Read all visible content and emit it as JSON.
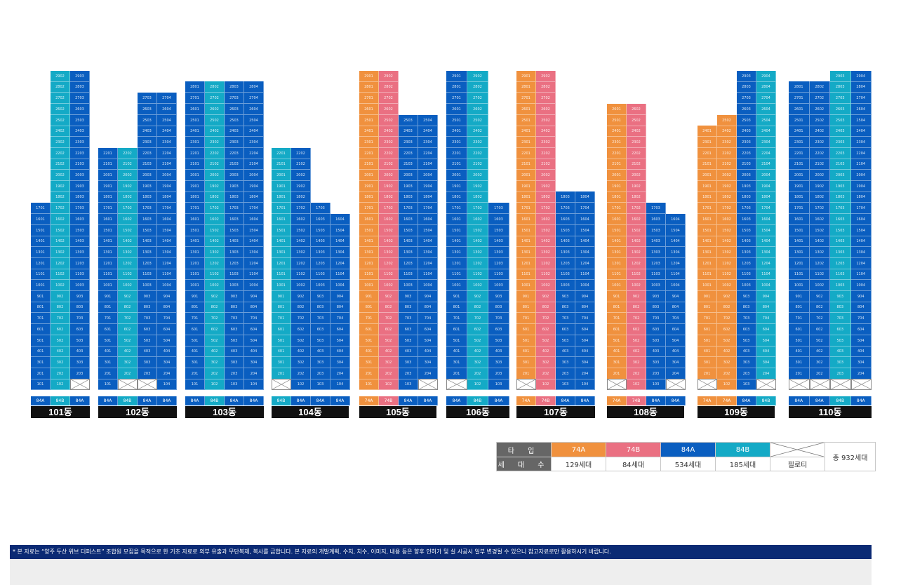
{
  "colors": {
    "74A": "#f0913e",
    "74B": "#ea7082",
    "84A": "#0a5ec0",
    "84B": "#14aac6",
    "pilotis": "#ffffff"
  },
  "buildings": [
    {
      "name": "101동",
      "columns": [
        {
          "type": "84A",
          "line": "01",
          "top": 17
        },
        {
          "type": "84B",
          "line": "02",
          "top": 29
        },
        {
          "type": "84A",
          "line": "03",
          "top": 29
        }
      ]
    },
    {
      "name": "102동",
      "columns": [
        {
          "type": "84A",
          "line": "01",
          "top": 22
        },
        {
          "type": "84B",
          "line": "02",
          "top": 22
        },
        {
          "type": "84A",
          "line": "03",
          "top": 27
        },
        {
          "type": "84A",
          "line": "04",
          "top": 27
        }
      ]
    },
    {
      "name": "103동",
      "columns": [
        {
          "type": "84A",
          "line": "01",
          "top": 28
        },
        {
          "type": "84B",
          "line": "02",
          "top": 28
        },
        {
          "type": "84A",
          "line": "03",
          "top": 28
        },
        {
          "type": "84A",
          "line": "04",
          "top": 28
        }
      ]
    },
    {
      "name": "104동",
      "columns": [
        {
          "type": "84B",
          "line": "01",
          "top": 22
        },
        {
          "type": "84A",
          "line": "02",
          "top": 22
        },
        {
          "type": "84A",
          "line": "03",
          "top": 17
        },
        {
          "type": "84A",
          "line": "04",
          "top": 16
        }
      ]
    },
    {
      "name": "105동",
      "columns": [
        {
          "type": "74A",
          "line": "01",
          "top": 29
        },
        {
          "type": "74B",
          "line": "02",
          "top": 29
        },
        {
          "type": "84A",
          "line": "03",
          "top": 25
        },
        {
          "type": "84A",
          "line": "04",
          "top": 25
        }
      ]
    },
    {
      "name": "106동",
      "columns": [
        {
          "type": "84A",
          "line": "01",
          "top": 29
        },
        {
          "type": "84B",
          "line": "02",
          "top": 29
        },
        {
          "type": "84A",
          "line": "03",
          "top": 17
        }
      ]
    },
    {
      "name": "107동",
      "columns": [
        {
          "type": "74A",
          "line": "01",
          "top": 29
        },
        {
          "type": "74B",
          "line": "02",
          "top": 29
        },
        {
          "type": "84A",
          "line": "03",
          "top": 18
        },
        {
          "type": "84A",
          "line": "04",
          "top": 18
        }
      ]
    },
    {
      "name": "108동",
      "columns": [
        {
          "type": "74A",
          "line": "01",
          "top": 26
        },
        {
          "type": "74B",
          "line": "02",
          "top": 26
        },
        {
          "type": "84A",
          "line": "03",
          "top": 17
        },
        {
          "type": "84A",
          "line": "04",
          "top": 16
        }
      ]
    },
    {
      "name": "109동",
      "columns": [
        {
          "type": "74A",
          "line": "01",
          "top": 24
        },
        {
          "type": "74A",
          "line": "02",
          "top": 25
        },
        {
          "type": "84A",
          "line": "03",
          "top": 29
        },
        {
          "type": "84B",
          "line": "04",
          "top": 29
        }
      ]
    },
    {
      "name": "110동",
      "columns": [
        {
          "type": "84A",
          "line": "01",
          "top": 28
        },
        {
          "type": "84A",
          "line": "02",
          "top": 28
        },
        {
          "type": "84B",
          "line": "03",
          "top": 29
        },
        {
          "type": "84A",
          "line": "04",
          "top": 29
        }
      ]
    }
  ],
  "legend": {
    "type_header": "타 입",
    "count_header": "세 대 수",
    "types": [
      {
        "type": "74A",
        "count": "129세대"
      },
      {
        "type": "74B",
        "count": "84세대"
      },
      {
        "type": "84A",
        "count": "534세대"
      },
      {
        "type": "84B",
        "count": "185세대"
      }
    ],
    "pilotis_label": "필로티",
    "total": "총 932세대"
  },
  "footer_note": "* 본 자료는 “양주 두산 위브 더퍼스트” 조합원 모집을 목적으로 한 기초 자료로 외부 유출과 무단복제, 복사를 금합니다. 본 자료의 개발계획, 수치, 치수, 이미지, 내용 등은 향후 인허가 및 실 시공시 일부 변경될 수 있으니 참고자료로만 활용하시기 바랍니다."
}
